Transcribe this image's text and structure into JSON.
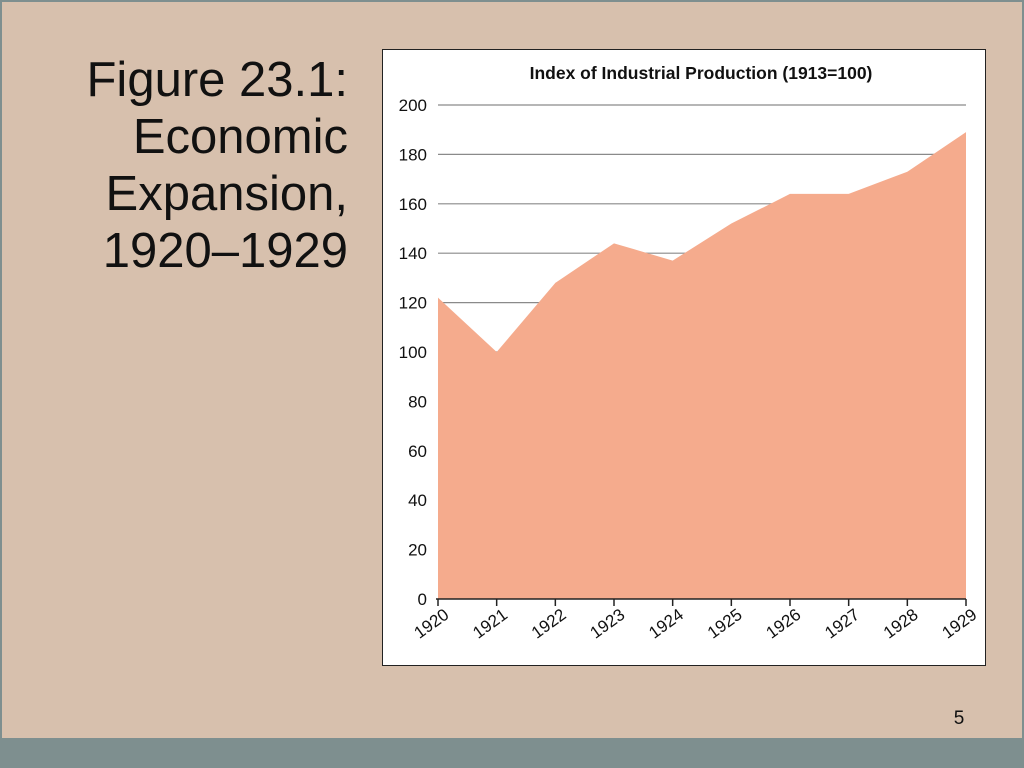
{
  "slide": {
    "title_lines": [
      "Figure 23.1:",
      "Economic",
      "Expansion,",
      "1920–1929"
    ],
    "page_number": "5"
  },
  "colors": {
    "background": "#d7c0ad",
    "bar": "#7e8f8f",
    "area_fill": "#f5ab8d",
    "gridline": "#8a8a8a"
  },
  "chart_data": {
    "type": "area",
    "title": "Index of Industrial Production (1913=100)",
    "xlabel": "",
    "ylabel": "",
    "x_tick_labels": [
      "1920",
      "1921",
      "1922",
      "1923",
      "1924",
      "1925",
      "1926",
      "1927",
      "1928",
      "1929"
    ],
    "y_tick_labels": [
      "0",
      "20",
      "40",
      "60",
      "80",
      "100",
      "120",
      "140",
      "160",
      "180",
      "200"
    ],
    "ylim": [
      0,
      200
    ],
    "grid": true,
    "series": [
      {
        "x": [
          1920,
          1921,
          1922,
          1923,
          1924,
          1925,
          1926,
          1927,
          1928,
          1929
        ],
        "values": [
          122,
          100,
          128,
          144,
          137,
          152,
          164,
          164,
          173,
          189
        ]
      }
    ]
  }
}
